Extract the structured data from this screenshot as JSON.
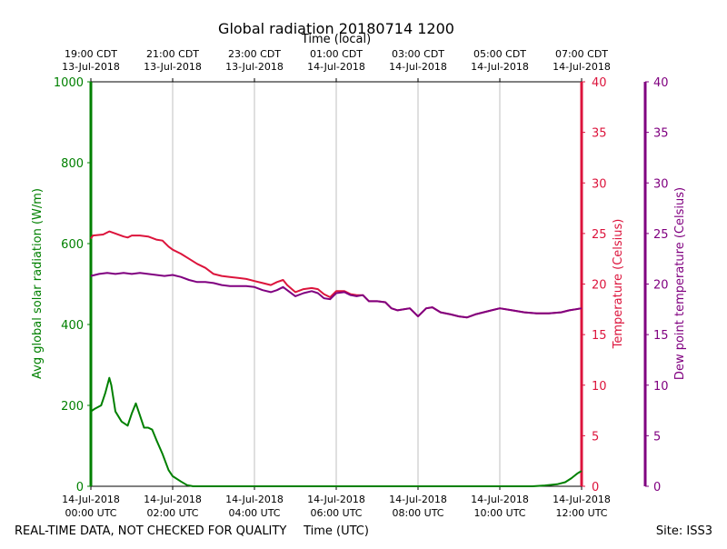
{
  "chart_data": {
    "type": "line",
    "title": "Global radiation 20180714 1200",
    "top_axis_label": "Time (local)",
    "top_ticks": [
      {
        "line1": "19:00 CDT",
        "line2": "13-Jul-2018"
      },
      {
        "line1": "21:00 CDT",
        "line2": "13-Jul-2018"
      },
      {
        "line1": "23:00 CDT",
        "line2": "13-Jul-2018"
      },
      {
        "line1": "01:00 CDT",
        "line2": "14-Jul-2018"
      },
      {
        "line1": "03:00 CDT",
        "line2": "14-Jul-2018"
      },
      {
        "line1": "05:00 CDT",
        "line2": "14-Jul-2018"
      },
      {
        "line1": "07:00 CDT",
        "line2": "14-Jul-2018"
      }
    ],
    "xlabel": "Time (UTC)",
    "x_ticks": [
      {
        "line1": "14-Jul-2018",
        "line2": "00:00 UTC"
      },
      {
        "line1": "14-Jul-2018",
        "line2": "02:00 UTC"
      },
      {
        "line1": "14-Jul-2018",
        "line2": "04:00 UTC"
      },
      {
        "line1": "14-Jul-2018",
        "line2": "06:00 UTC"
      },
      {
        "line1": "14-Jul-2018",
        "line2": "08:00 UTC"
      },
      {
        "line1": "14-Jul-2018",
        "line2": "10:00 UTC"
      },
      {
        "line1": "14-Jul-2018",
        "line2": "12:00 UTC"
      }
    ],
    "xlim_hours_utc": [
      0,
      12
    ],
    "grid": "vertical",
    "footer_left": "REAL-TIME DATA, NOT CHECKED FOR QUALITY",
    "footer_right": "Site: ISS3",
    "axes": {
      "radiation": {
        "label": "Avg global solar radiation (W/m)",
        "ylim": [
          0,
          1000
        ],
        "ticks": [
          "0",
          "200",
          "400",
          "600",
          "800",
          "1000"
        ],
        "color": "#008000"
      },
      "temperature": {
        "label": "Temperature (Celsius)",
        "ylim": [
          0,
          40
        ],
        "ticks": [
          "0",
          "5",
          "10",
          "15",
          "20",
          "25",
          "30",
          "35",
          "40"
        ],
        "color": "#dc143c"
      },
      "dewpoint": {
        "label": "Dew point temperature (Celsius)",
        "ylim": [
          0,
          40
        ],
        "ticks": [
          "0",
          "5",
          "10",
          "15",
          "20",
          "25",
          "30",
          "35",
          "40"
        ],
        "color": "#800080"
      }
    },
    "series": [
      {
        "axis": "radiation",
        "color": "#008000",
        "points": [
          [
            0,
            185
          ],
          [
            0.1,
            192
          ],
          [
            0.25,
            200
          ],
          [
            0.35,
            230
          ],
          [
            0.45,
            268
          ],
          [
            0.5,
            250
          ],
          [
            0.6,
            185
          ],
          [
            0.75,
            160
          ],
          [
            0.9,
            150
          ],
          [
            1.0,
            180
          ],
          [
            1.1,
            205
          ],
          [
            1.2,
            175
          ],
          [
            1.3,
            145
          ],
          [
            1.4,
            145
          ],
          [
            1.5,
            140
          ],
          [
            1.6,
            115
          ],
          [
            1.75,
            80
          ],
          [
            1.9,
            40
          ],
          [
            2.0,
            25
          ],
          [
            2.2,
            12
          ],
          [
            2.35,
            3
          ],
          [
            2.5,
            0
          ],
          [
            3,
            0
          ],
          [
            4,
            0
          ],
          [
            5,
            0
          ],
          [
            6,
            0
          ],
          [
            7,
            0
          ],
          [
            8,
            0
          ],
          [
            9,
            0
          ],
          [
            10,
            0
          ],
          [
            10.8,
            0
          ],
          [
            11.1,
            2
          ],
          [
            11.4,
            5
          ],
          [
            11.6,
            10
          ],
          [
            11.75,
            20
          ],
          [
            11.9,
            32
          ],
          [
            12.0,
            38
          ]
        ]
      },
      {
        "axis": "temperature",
        "color": "#dc143c",
        "points": [
          [
            0,
            24.5
          ],
          [
            0.05,
            24.8
          ],
          [
            0.3,
            24.9
          ],
          [
            0.45,
            25.2
          ],
          [
            0.6,
            25.0
          ],
          [
            0.8,
            24.7
          ],
          [
            0.9,
            24.6
          ],
          [
            1.0,
            24.8
          ],
          [
            1.2,
            24.8
          ],
          [
            1.4,
            24.7
          ],
          [
            1.6,
            24.4
          ],
          [
            1.75,
            24.3
          ],
          [
            1.9,
            23.7
          ],
          [
            2.0,
            23.4
          ],
          [
            2.2,
            23.0
          ],
          [
            2.4,
            22.5
          ],
          [
            2.6,
            22.0
          ],
          [
            2.8,
            21.6
          ],
          [
            3.0,
            21.0
          ],
          [
            3.2,
            20.8
          ],
          [
            3.4,
            20.7
          ],
          [
            3.6,
            20.6
          ],
          [
            3.8,
            20.5
          ],
          [
            4.0,
            20.3
          ],
          [
            4.2,
            20.1
          ],
          [
            4.4,
            19.9
          ],
          [
            4.55,
            20.2
          ],
          [
            4.7,
            20.4
          ],
          [
            4.8,
            19.9
          ],
          [
            5.0,
            19.2
          ],
          [
            5.2,
            19.5
          ],
          [
            5.4,
            19.6
          ],
          [
            5.55,
            19.5
          ],
          [
            5.7,
            19.0
          ],
          [
            5.85,
            18.7
          ],
          [
            6.0,
            19.3
          ],
          [
            6.2,
            19.3
          ],
          [
            6.35,
            19.0
          ],
          [
            6.5,
            18.9
          ],
          [
            6.65,
            18.9
          ],
          [
            6.8,
            18.3
          ],
          [
            7.0,
            18.3
          ],
          [
            7.2,
            18.2
          ],
          [
            7.35,
            17.6
          ],
          [
            7.5,
            17.4
          ],
          [
            7.8,
            17.6
          ],
          [
            8.0,
            16.8
          ],
          [
            8.2,
            17.6
          ],
          [
            8.35,
            17.7
          ],
          [
            8.55,
            17.2
          ],
          [
            8.8,
            17.0
          ],
          [
            9.0,
            16.8
          ],
          [
            9.2,
            16.7
          ],
          [
            9.4,
            17.0
          ],
          [
            9.6,
            17.2
          ],
          [
            9.8,
            17.4
          ],
          [
            10.0,
            17.6
          ],
          [
            10.3,
            17.4
          ],
          [
            10.6,
            17.2
          ],
          [
            10.9,
            17.1
          ],
          [
            11.2,
            17.1
          ],
          [
            11.5,
            17.2
          ],
          [
            11.7,
            17.4
          ],
          [
            11.85,
            17.5
          ],
          [
            12.0,
            17.6
          ]
        ]
      },
      {
        "axis": "dewpoint",
        "color": "#800080",
        "points": [
          [
            0,
            20.8
          ],
          [
            0.2,
            21.0
          ],
          [
            0.4,
            21.1
          ],
          [
            0.6,
            21.0
          ],
          [
            0.8,
            21.1
          ],
          [
            1.0,
            21.0
          ],
          [
            1.2,
            21.1
          ],
          [
            1.4,
            21.0
          ],
          [
            1.6,
            20.9
          ],
          [
            1.8,
            20.8
          ],
          [
            2.0,
            20.9
          ],
          [
            2.2,
            20.7
          ],
          [
            2.4,
            20.4
          ],
          [
            2.6,
            20.2
          ],
          [
            2.8,
            20.2
          ],
          [
            3.0,
            20.1
          ],
          [
            3.2,
            19.9
          ],
          [
            3.4,
            19.8
          ],
          [
            3.6,
            19.8
          ],
          [
            3.8,
            19.8
          ],
          [
            4.0,
            19.7
          ],
          [
            4.2,
            19.4
          ],
          [
            4.4,
            19.2
          ],
          [
            4.55,
            19.4
          ],
          [
            4.7,
            19.7
          ],
          [
            4.8,
            19.4
          ],
          [
            5.0,
            18.8
          ],
          [
            5.2,
            19.1
          ],
          [
            5.4,
            19.3
          ],
          [
            5.55,
            19.1
          ],
          [
            5.7,
            18.6
          ],
          [
            5.85,
            18.5
          ],
          [
            6.0,
            19.1
          ],
          [
            6.2,
            19.2
          ],
          [
            6.35,
            18.9
          ],
          [
            6.5,
            18.8
          ],
          [
            6.65,
            18.9
          ],
          [
            6.8,
            18.3
          ],
          [
            7.0,
            18.3
          ],
          [
            7.2,
            18.2
          ],
          [
            7.35,
            17.6
          ],
          [
            7.5,
            17.4
          ],
          [
            7.8,
            17.6
          ],
          [
            8.0,
            16.8
          ],
          [
            8.2,
            17.6
          ],
          [
            8.35,
            17.7
          ],
          [
            8.55,
            17.2
          ],
          [
            8.8,
            17.0
          ],
          [
            9.0,
            16.8
          ],
          [
            9.2,
            16.7
          ],
          [
            9.4,
            17.0
          ],
          [
            9.6,
            17.2
          ],
          [
            9.8,
            17.4
          ],
          [
            10.0,
            17.6
          ],
          [
            10.3,
            17.4
          ],
          [
            10.6,
            17.2
          ],
          [
            10.9,
            17.1
          ],
          [
            11.2,
            17.1
          ],
          [
            11.5,
            17.2
          ],
          [
            11.7,
            17.4
          ],
          [
            11.85,
            17.5
          ],
          [
            12.0,
            17.6
          ]
        ]
      }
    ]
  }
}
